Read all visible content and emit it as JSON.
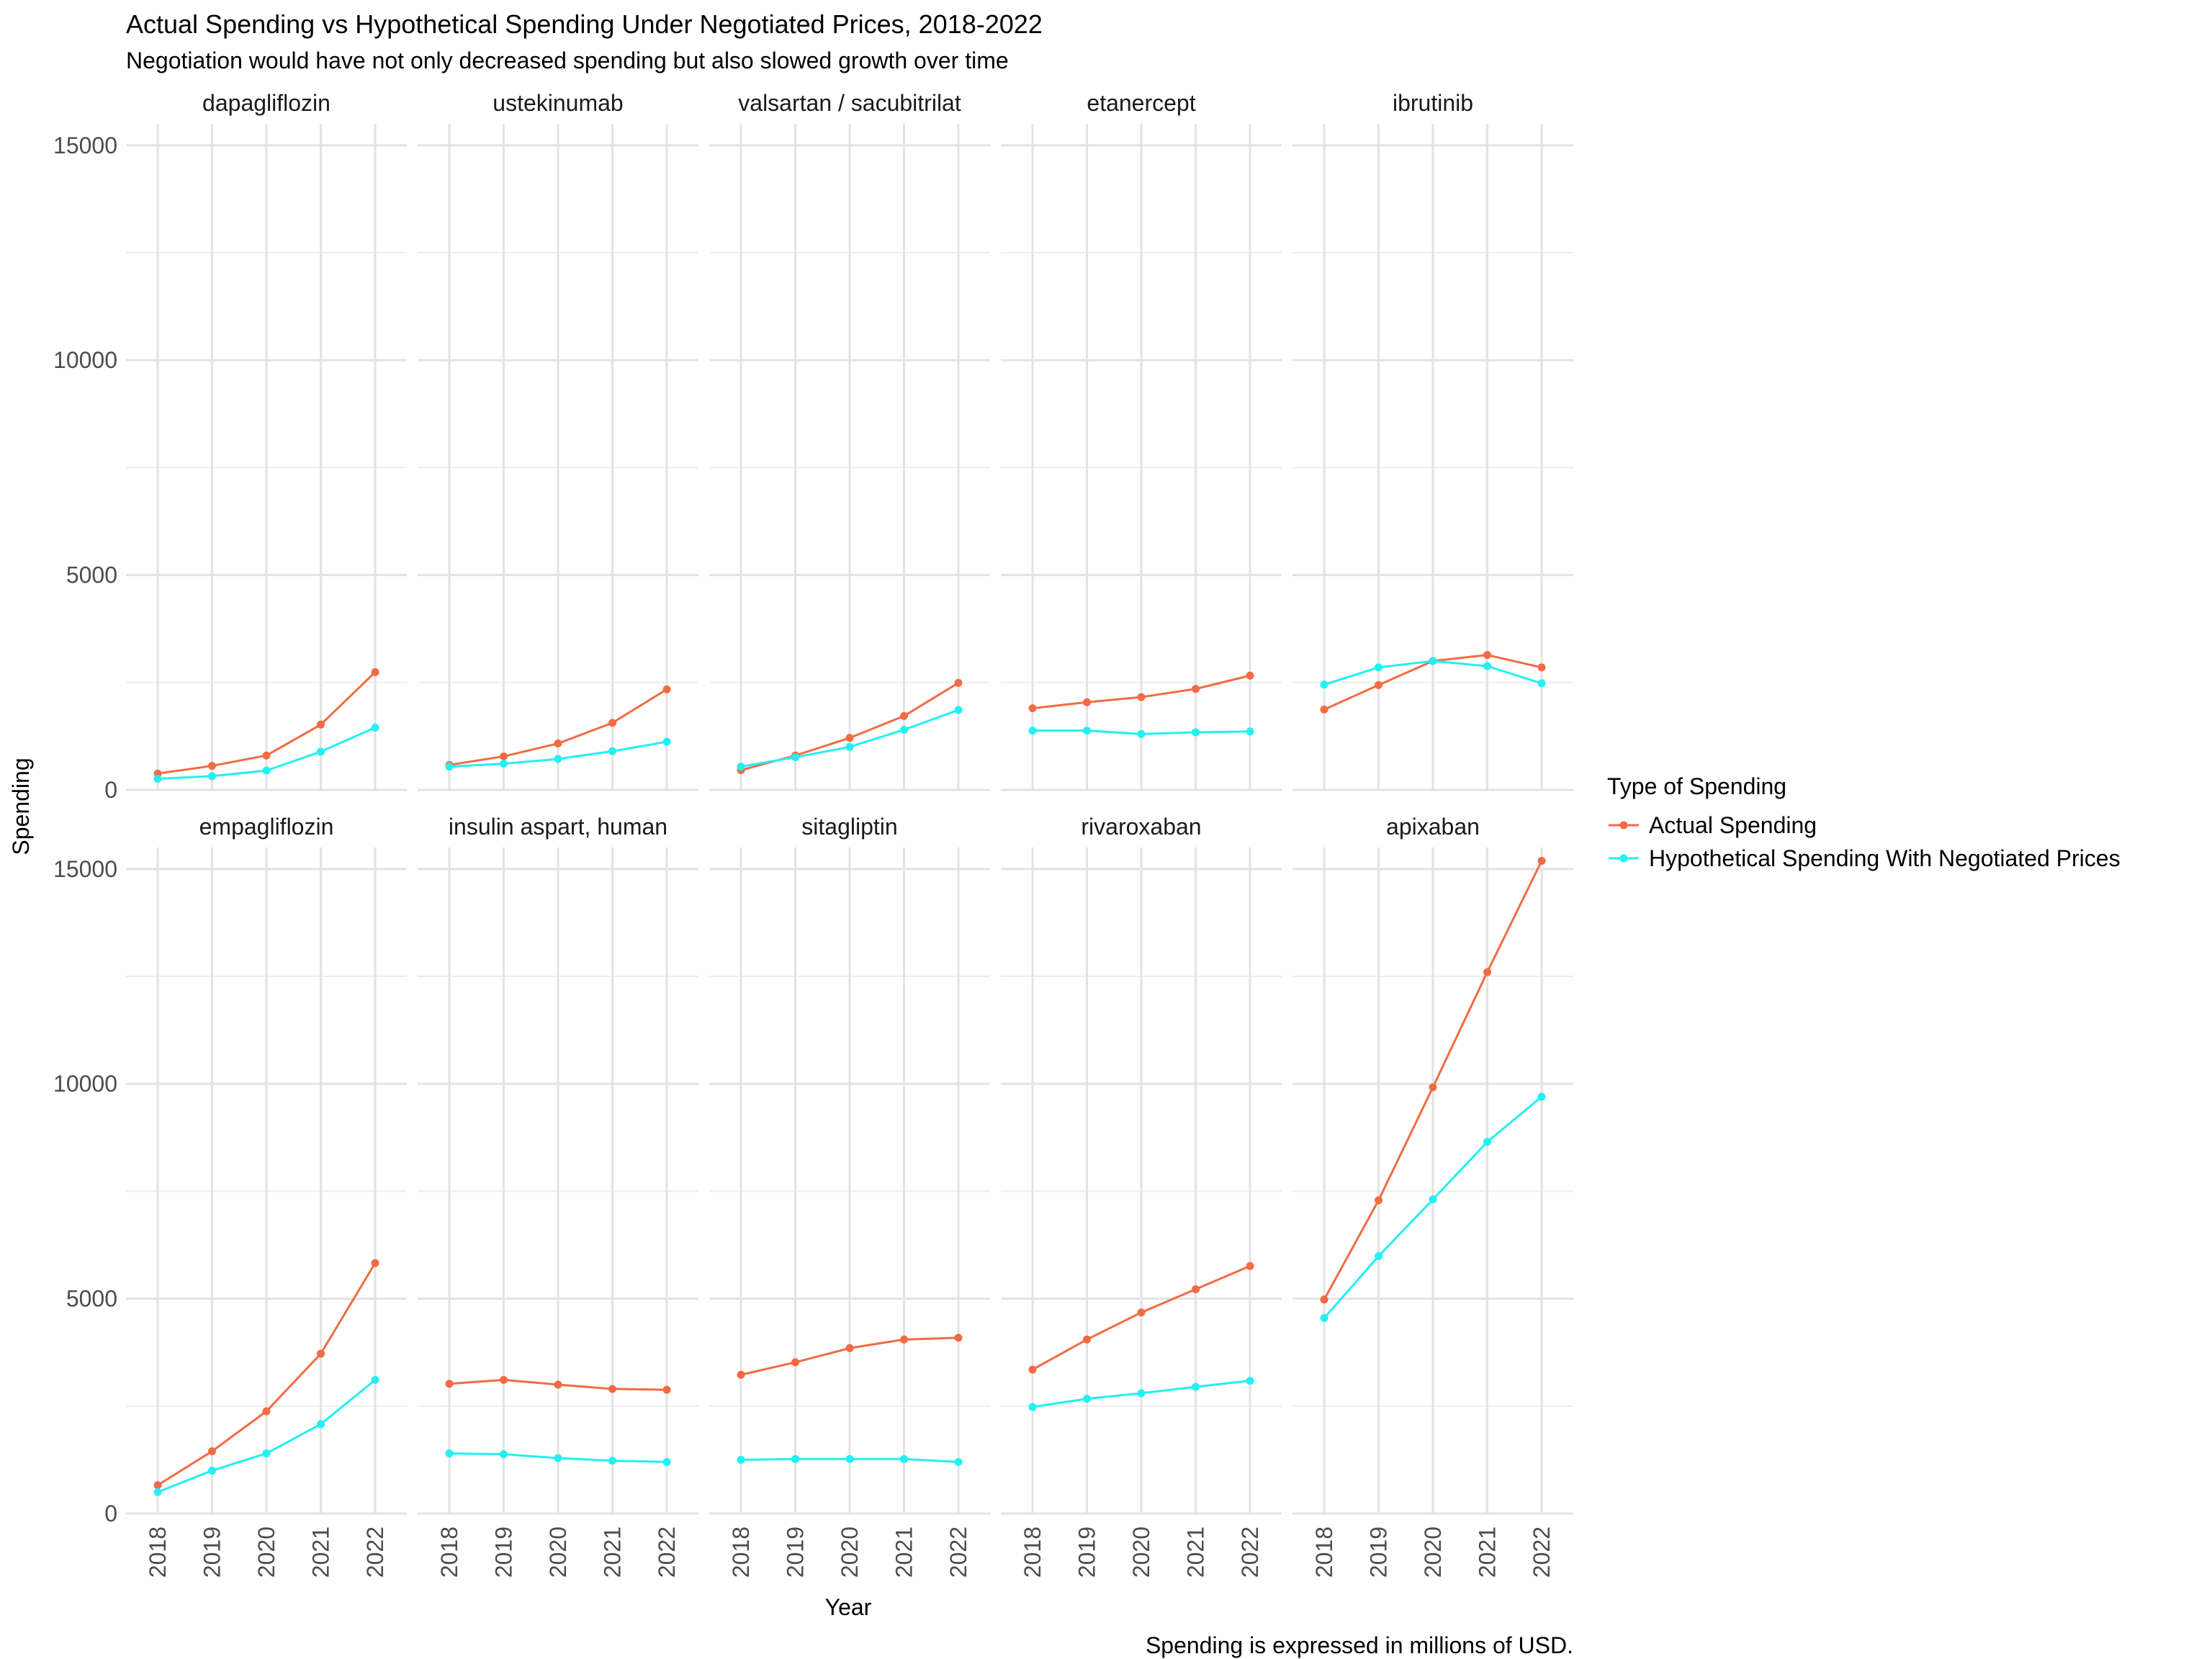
{
  "chart_data": {
    "type": "line",
    "title": "Actual Spending vs Hypothetical Spending Under Negotiated Prices, 2018-2022",
    "subtitle": "Negotiation would have not only decreased spending but also slowed growth over time",
    "caption": "Spending is expressed in millions of USD.",
    "xlabel": "Year",
    "ylabel": "Spending",
    "x": [
      "2018",
      "2019",
      "2020",
      "2021",
      "2022"
    ],
    "ylim": [
      0,
      15500
    ],
    "yticks": [
      0,
      5000,
      10000,
      15000
    ],
    "yticks_minor": [
      2500,
      7500,
      12500
    ],
    "grid": true,
    "legend": {
      "title": "Type of Spending",
      "position": "right",
      "entries": [
        {
          "key": "actual",
          "label": "Actual Spending",
          "color": "#F26B43"
        },
        {
          "key": "hypothetical",
          "label": "Hypothetical Spending With Negotiated Prices",
          "color": "#22F0F2"
        }
      ]
    },
    "panels": [
      {
        "name": "dapagliflozin",
        "actual": [
          380,
          560,
          800,
          1520,
          2740
        ],
        "hypothetical": [
          260,
          320,
          450,
          890,
          1450
        ]
      },
      {
        "name": "ustekinumab",
        "actual": [
          580,
          780,
          1080,
          1560,
          2340
        ],
        "hypothetical": [
          540,
          610,
          720,
          900,
          1120
        ]
      },
      {
        "name": "valsartan / sacubitrilat",
        "actual": [
          460,
          800,
          1210,
          1720,
          2490
        ],
        "hypothetical": [
          540,
          760,
          1000,
          1400,
          1860
        ]
      },
      {
        "name": "etanercept",
        "actual": [
          1900,
          2040,
          2160,
          2350,
          2660
        ],
        "hypothetical": [
          1380,
          1380,
          1300,
          1340,
          1360
        ]
      },
      {
        "name": "ibrutinib",
        "actual": [
          1870,
          2440,
          3000,
          3140,
          2850
        ],
        "hypothetical": [
          2450,
          2850,
          3000,
          2880,
          2480
        ]
      },
      {
        "name": "empagliflozin",
        "actual": [
          660,
          1450,
          2380,
          3720,
          5830
        ],
        "hypothetical": [
          500,
          1000,
          1400,
          2080,
          3110
        ]
      },
      {
        "name": "insulin aspart, human",
        "actual": [
          3020,
          3110,
          3000,
          2900,
          2880
        ],
        "hypothetical": [
          1400,
          1380,
          1290,
          1230,
          1200
        ]
      },
      {
        "name": "sitagliptin",
        "actual": [
          3230,
          3520,
          3850,
          4050,
          4090
        ],
        "hypothetical": [
          1250,
          1270,
          1270,
          1270,
          1200
        ]
      },
      {
        "name": "rivaroxaban",
        "actual": [
          3350,
          4050,
          4680,
          5220,
          5760
        ],
        "hypothetical": [
          2480,
          2670,
          2800,
          2950,
          3090
        ]
      },
      {
        "name": "apixaban",
        "actual": [
          4980,
          7290,
          9920,
          12600,
          15190
        ],
        "hypothetical": [
          4550,
          5990,
          7310,
          8650,
          9700
        ]
      }
    ]
  }
}
